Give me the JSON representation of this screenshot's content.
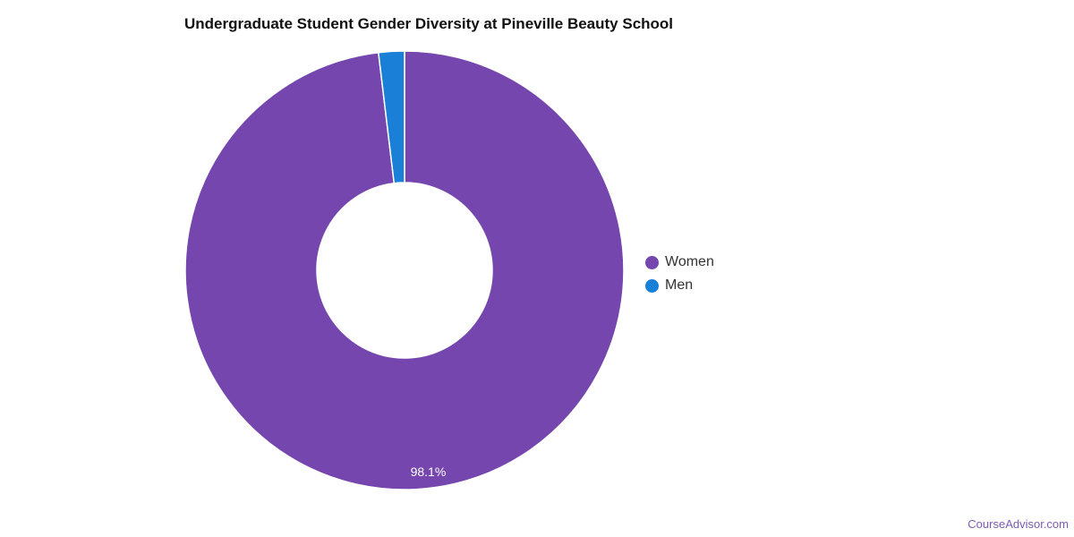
{
  "chart_data": {
    "type": "pie",
    "title": "Undergraduate Student Gender Diversity at Pineville Beauty School",
    "categories": [
      "Women",
      "Men"
    ],
    "values": [
      98.1,
      1.9
    ],
    "colors": [
      "#7446ae",
      "#1a7fd6"
    ],
    "data_labels": [
      "98.1%",
      ""
    ],
    "donut": true,
    "legend_position": "right"
  },
  "credit": "CourseAdvisor.com"
}
